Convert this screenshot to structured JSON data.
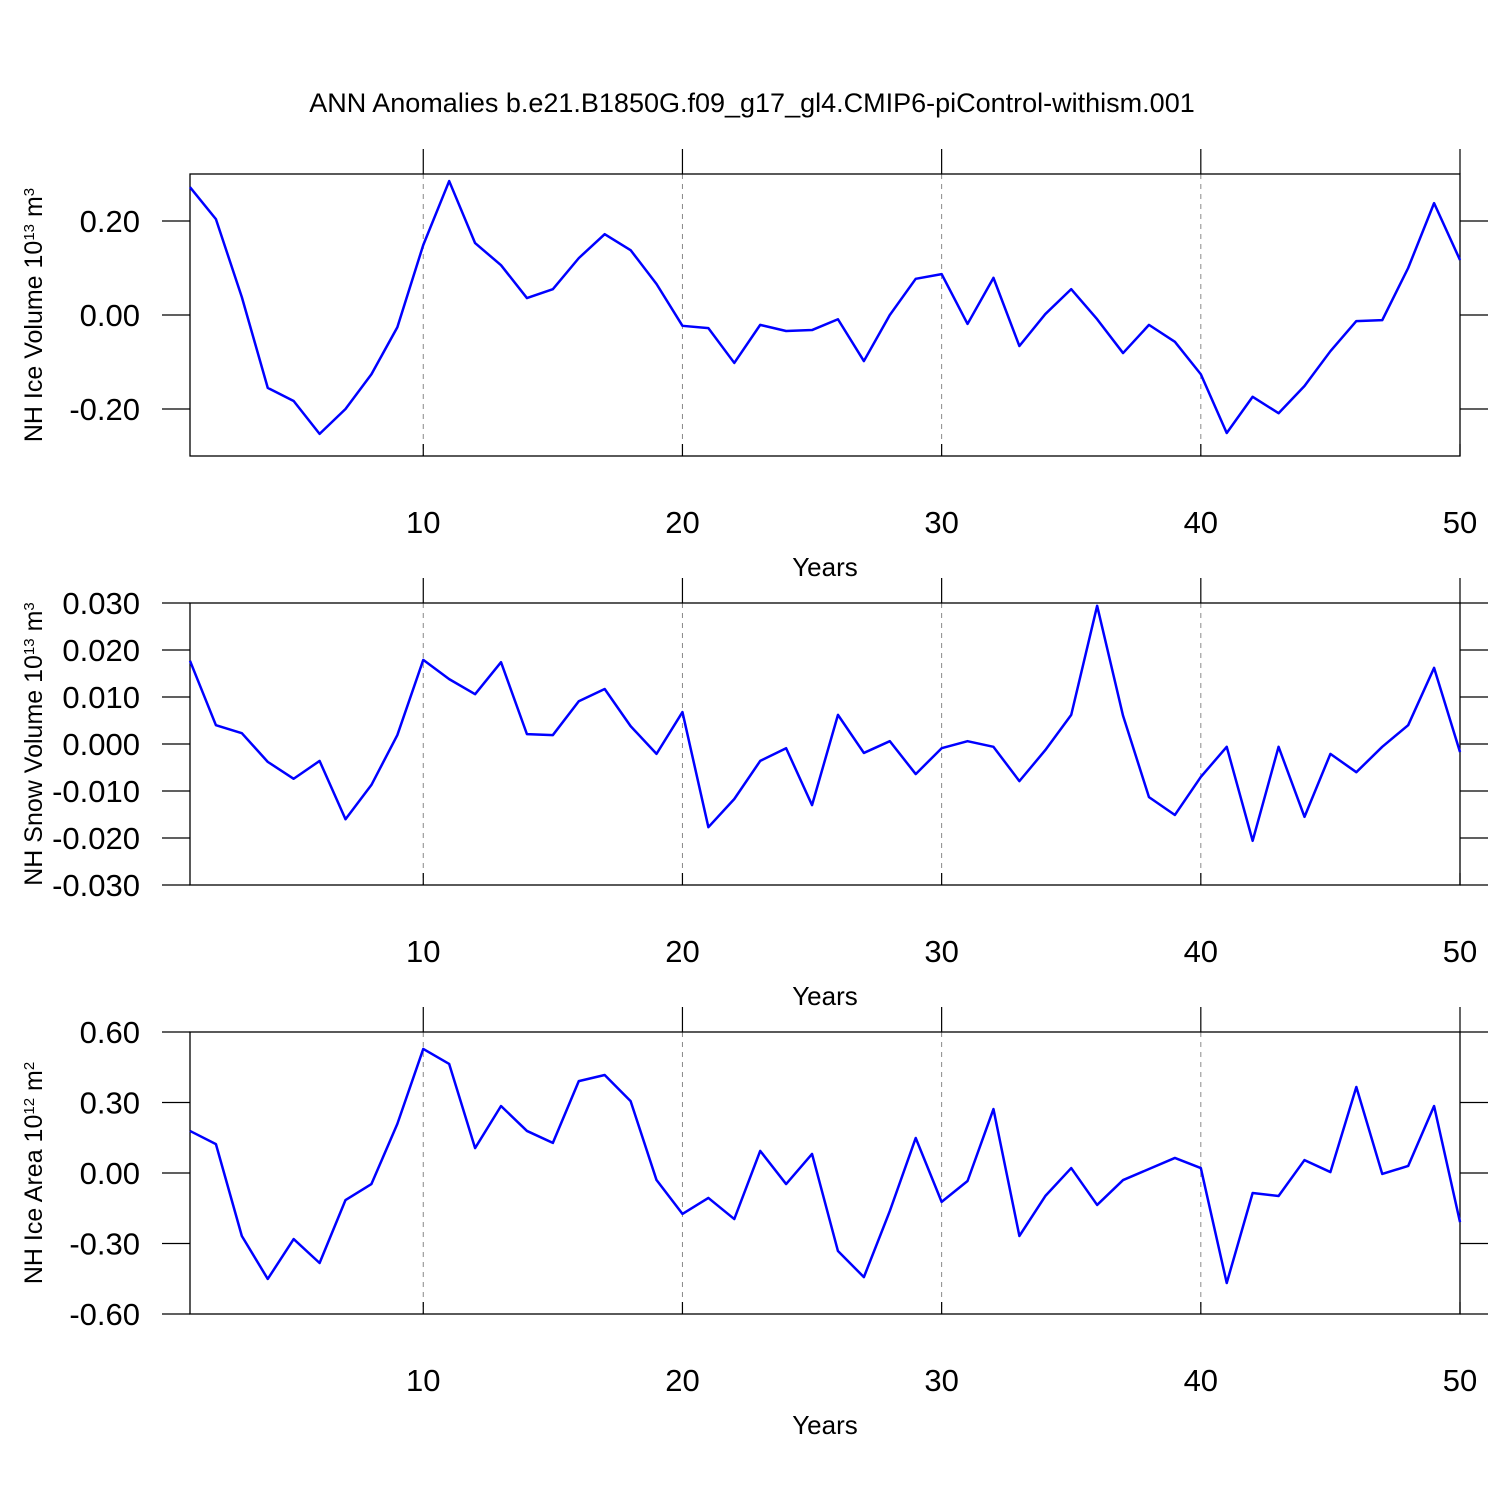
{
  "title": "ANN Anomalies b.e21.B1850G.f09_g17_gl4.CMIP6-piControl-withism.001",
  "chart_data": [
    {
      "type": "line",
      "ylabel": [
        "NH Ice Volume 10",
        "13",
        " m",
        "3"
      ],
      "xlabel": "Years",
      "color": "#0000ff",
      "xgrid": true,
      "xlim": [
        1,
        50
      ],
      "xticks": [
        10,
        20,
        30,
        40,
        50
      ],
      "ylim": [
        -0.3,
        0.3
      ],
      "yticks": [
        {
          "value": -0.2,
          "label": "-0.20"
        },
        {
          "value": 0,
          "label": "0.00"
        },
        {
          "value": 0.2,
          "label": "0.20"
        }
      ],
      "x": [
        1,
        2,
        3,
        4,
        5,
        6,
        7,
        8,
        9,
        10,
        11,
        12,
        13,
        14,
        15,
        16,
        17,
        18,
        19,
        20,
        21,
        22,
        23,
        24,
        25,
        26,
        27,
        28,
        29,
        30,
        31,
        32,
        33,
        34,
        35,
        36,
        37,
        38,
        39,
        40,
        41,
        42,
        43,
        44,
        45,
        46,
        47,
        48,
        49,
        50
      ],
      "values": [
        0.272,
        0.204,
        0.038,
        -0.155,
        -0.183,
        -0.253,
        -0.2,
        -0.126,
        -0.026,
        0.149,
        0.285,
        0.153,
        0.106,
        0.036,
        0.055,
        0.121,
        0.172,
        0.138,
        0.066,
        -0.023,
        -0.028,
        -0.102,
        -0.021,
        -0.034,
        -0.032,
        -0.009,
        -0.098,
        0.0,
        0.077,
        0.087,
        -0.019,
        0.079,
        -0.066,
        0.002,
        0.055,
        -0.009,
        -0.081,
        -0.021,
        -0.057,
        -0.126,
        -0.251,
        -0.174,
        -0.209,
        -0.151,
        -0.077,
        -0.013,
        -0.011,
        0.1,
        0.238,
        0.117
      ]
    },
    {
      "type": "line",
      "ylabel": [
        "NH Snow Volume 10",
        "13",
        " m",
        "3"
      ],
      "xlabel": "Years",
      "color": "#0000ff",
      "xgrid": true,
      "xlim": [
        1,
        50
      ],
      "xticks": [
        10,
        20,
        30,
        40,
        50
      ],
      "ylim": [
        -0.03,
        0.03
      ],
      "yticks": [
        {
          "value": -0.03,
          "label": "-0.030"
        },
        {
          "value": -0.02,
          "label": "-0.020"
        },
        {
          "value": -0.01,
          "label": "-0.010"
        },
        {
          "value": 0,
          "label": "0.000"
        },
        {
          "value": 0.01,
          "label": "0.010"
        },
        {
          "value": 0.02,
          "label": "0.020"
        },
        {
          "value": 0.03,
          "label": "0.030"
        }
      ],
      "x": [
        1,
        2,
        3,
        4,
        5,
        6,
        7,
        8,
        9,
        10,
        11,
        12,
        13,
        14,
        15,
        16,
        17,
        18,
        19,
        20,
        21,
        22,
        23,
        24,
        25,
        26,
        27,
        28,
        29,
        30,
        31,
        32,
        33,
        34,
        35,
        36,
        37,
        38,
        39,
        40,
        41,
        42,
        43,
        44,
        45,
        46,
        47,
        48,
        49,
        50
      ],
      "values": [
        0.0177,
        0.004,
        0.0023,
        -0.0038,
        -0.0074,
        -0.0036,
        -0.016,
        -0.0087,
        0.0019,
        0.0179,
        0.0138,
        0.0106,
        0.0174,
        0.0021,
        0.0019,
        0.0091,
        0.0117,
        0.0038,
        -0.0021,
        0.0068,
        -0.0177,
        -0.0117,
        -0.0036,
        -0.0009,
        -0.013,
        0.0062,
        -0.0019,
        0.0006,
        -0.0064,
        -0.0009,
        0.0006,
        -0.0006,
        -0.0079,
        -0.0013,
        0.0062,
        0.0294,
        0.006,
        -0.0113,
        -0.0151,
        -0.007,
        -0.0006,
        -0.0206,
        -0.0006,
        -0.0155,
        -0.0021,
        -0.006,
        -0.0006,
        0.004,
        0.0162,
        -0.0017
      ]
    },
    {
      "type": "line",
      "ylabel": [
        "NH Ice Area 10",
        "12",
        " m",
        "2"
      ],
      "xlabel": "Years",
      "color": "#0000ff",
      "xgrid": true,
      "xlim": [
        1,
        50
      ],
      "xticks": [
        10,
        20,
        30,
        40,
        50
      ],
      "ylim": [
        -0.6,
        0.6
      ],
      "yticks": [
        {
          "value": -0.6,
          "label": "-0.60"
        },
        {
          "value": -0.3,
          "label": "-0.30"
        },
        {
          "value": 0,
          "label": "0.00"
        },
        {
          "value": 0.3,
          "label": "0.30"
        },
        {
          "value": 0.6,
          "label": "0.60"
        }
      ],
      "x": [
        1,
        2,
        3,
        4,
        5,
        6,
        7,
        8,
        9,
        10,
        11,
        12,
        13,
        14,
        15,
        16,
        17,
        18,
        19,
        20,
        21,
        22,
        23,
        24,
        25,
        26,
        27,
        28,
        29,
        30,
        31,
        32,
        33,
        34,
        35,
        36,
        37,
        38,
        39,
        40,
        41,
        42,
        43,
        44,
        45,
        46,
        47,
        48,
        49,
        50
      ],
      "values": [
        0.179,
        0.123,
        -0.268,
        -0.451,
        -0.281,
        -0.383,
        -0.115,
        -0.047,
        0.209,
        0.528,
        0.464,
        0.106,
        0.285,
        0.179,
        0.128,
        0.391,
        0.417,
        0.306,
        -0.03,
        -0.174,
        -0.106,
        -0.196,
        0.094,
        -0.047,
        0.081,
        -0.332,
        -0.443,
        -0.162,
        0.149,
        -0.123,
        -0.034,
        0.272,
        -0.268,
        -0.098,
        0.021,
        -0.136,
        -0.03,
        0.017,
        0.064,
        0.021,
        -0.468,
        -0.085,
        -0.098,
        0.055,
        0.004,
        0.366,
        -0.004,
        0.03,
        0.285,
        -0.209
      ]
    }
  ]
}
